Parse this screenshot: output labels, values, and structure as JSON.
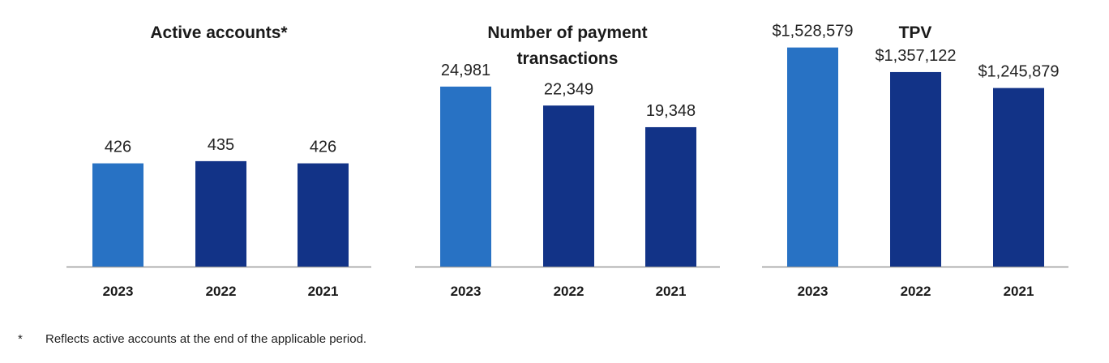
{
  "colors": {
    "highlight": "#2872c4",
    "base": "#123387",
    "axis": "#9a9a9a"
  },
  "chart_data": [
    {
      "type": "bar",
      "title": "Active accounts*",
      "categories": [
        "2023",
        "2022",
        "2021"
      ],
      "values": [
        426,
        435,
        426
      ],
      "value_labels": [
        "426",
        "435",
        "426"
      ],
      "ylim": [
        0,
        1100
      ]
    },
    {
      "type": "bar",
      "title": "Number of payment transactions",
      "categories": [
        "2023",
        "2022",
        "2021"
      ],
      "values": [
        24981,
        22349,
        19348
      ],
      "value_labels": [
        "24,981",
        "22,349",
        "19,348"
      ],
      "ylim": [
        0,
        37000
      ]
    },
    {
      "type": "bar",
      "title": "TPV",
      "categories": [
        "2023",
        "2022",
        "2021"
      ],
      "values": [
        1528579,
        1357122,
        1245879
      ],
      "value_labels": [
        "$1,528,579",
        "$1,357,122",
        "$1,245,879"
      ],
      "ylim": [
        0,
        1860000
      ]
    }
  ],
  "footnote": {
    "marker": "*",
    "text": "Reflects active accounts at the end of the applicable period."
  }
}
